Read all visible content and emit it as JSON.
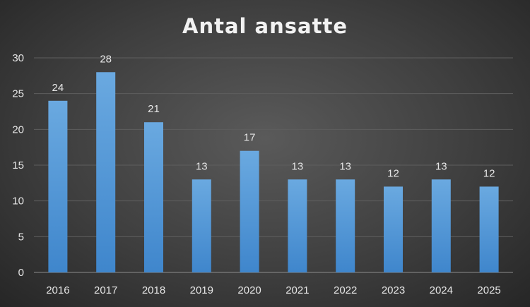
{
  "chart_data": {
    "type": "bar",
    "title": "Antal ansatte",
    "categories": [
      "2016",
      "2017",
      "2018",
      "2019",
      "2020",
      "2021",
      "2022",
      "2023",
      "2024",
      "2025"
    ],
    "values": [
      24,
      28,
      21,
      13,
      17,
      13,
      13,
      12,
      13,
      12
    ],
    "ylim": [
      0,
      30
    ],
    "yticks": [
      0,
      5,
      10,
      15,
      20,
      25,
      30
    ],
    "grid": true,
    "legend": "none",
    "bar_color": "#5b9bd5",
    "background_color": "#3f3f3f"
  }
}
